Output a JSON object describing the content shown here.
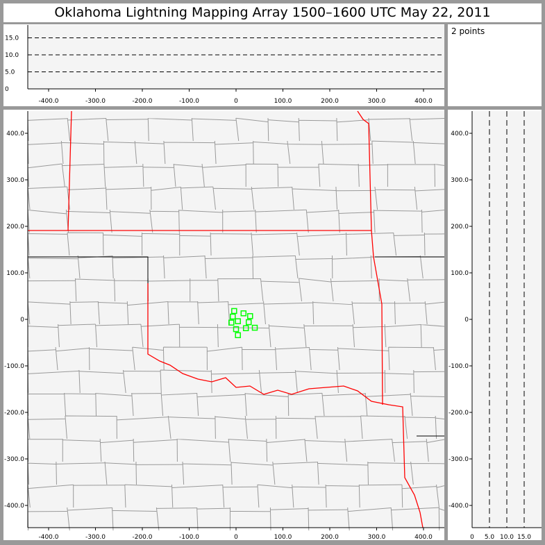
{
  "title": "Oklahoma Lightning Mapping Array   1500–1600 UTC  May 22, 2011",
  "point_count_label": "2 points",
  "colors": {
    "plot_bg": "#f4f4f4",
    "state_border": "#ff0000",
    "county": "#999999",
    "source_marker": "#00ff00"
  },
  "top_panel": {
    "y_ticks": [
      "0",
      "5.0",
      "10.0",
      "15.0"
    ],
    "x_ticks": [
      "-400.0",
      "-300.0",
      "-200.0",
      "-100.0",
      "0",
      "100.0",
      "200.0",
      "300.0",
      "400.0"
    ]
  },
  "main_panel": {
    "x_ticks": [
      "-400.0",
      "-300.0",
      "-200.0",
      "-100.0",
      "0",
      "100.0",
      "200.0",
      "300.0",
      "400.0"
    ],
    "y_ticks": [
      "400.0",
      "300.0",
      "200.0",
      "100.0",
      "0",
      "-100.0",
      "-200.0",
      "-300.0",
      "-400.0"
    ]
  },
  "right_panel": {
    "x_ticks": [
      "0",
      "5.0",
      "10.0",
      "15.0"
    ]
  },
  "sensor_stations_km": [
    [
      -4,
      18
    ],
    [
      -7,
      6
    ],
    [
      16,
      13
    ],
    [
      30,
      7
    ],
    [
      -10,
      -7
    ],
    [
      4,
      -4
    ],
    [
      27,
      -6
    ],
    [
      0,
      -21
    ],
    [
      21,
      -19
    ],
    [
      40,
      -18
    ],
    [
      4,
      -34
    ]
  ]
}
